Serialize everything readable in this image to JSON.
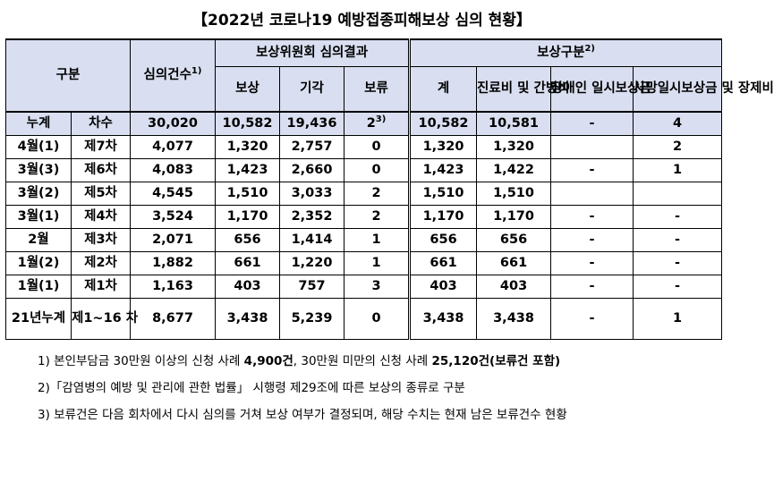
{
  "title": "【2022년 코로나19 예방접종피해보상 심의 현황】",
  "headers": {
    "gubun": "구분",
    "cases": "심의건수",
    "cases_sup": "1)",
    "committee": "보상위원회 심의결과",
    "compensation": "보상",
    "rejected": "기각",
    "pending": "보류",
    "comp_type": "보상구분",
    "comp_type_sup": "2)",
    "total": "계",
    "medical": "진료비 및 간병비",
    "disability": "장애인 일시보상금",
    "death": "사망일시보상금 및 장제비"
  },
  "total_row": {
    "label": "누계",
    "round": "차수",
    "cases": "30,020",
    "compensation": "10,582",
    "rejected": "19,436",
    "pending": "2",
    "pending_sup": "3)",
    "total": "10,582",
    "medical": "10,581",
    "disability": "-",
    "death": "4"
  },
  "rows": [
    {
      "month": "4월(1)",
      "round": "제7차",
      "cases": "4,077",
      "compensation": "1,320",
      "rejected": "2,757",
      "pending": "0",
      "total": "1,320",
      "medical": "1,320",
      "disability": "",
      "death": "2"
    },
    {
      "month": "3월(3)",
      "round": "제6차",
      "cases": "4,083",
      "compensation": "1,423",
      "rejected": "2,660",
      "pending": "0",
      "total": "1,423",
      "medical": "1,422",
      "disability": "-",
      "death": "1"
    },
    {
      "month": "3월(2)",
      "round": "제5차",
      "cases": "4,545",
      "compensation": "1,510",
      "rejected": "3,033",
      "pending": "2",
      "total": "1,510",
      "medical": "1,510",
      "disability": "",
      "death": ""
    },
    {
      "month": "3월(1)",
      "round": "제4차",
      "cases": "3,524",
      "compensation": "1,170",
      "rejected": "2,352",
      "pending": "2",
      "total": "1,170",
      "medical": "1,170",
      "disability": "-",
      "death": "-"
    },
    {
      "month": "2월",
      "round": "제3차",
      "cases": "2,071",
      "compensation": "656",
      "rejected": "1,414",
      "pending": "1",
      "total": "656",
      "medical": "656",
      "disability": "-",
      "death": "-"
    },
    {
      "month": "1월(2)",
      "round": "제2차",
      "cases": "1,882",
      "compensation": "661",
      "rejected": "1,220",
      "pending": "1",
      "total": "661",
      "medical": "661",
      "disability": "-",
      "death": "-"
    },
    {
      "month": "1월(1)",
      "round": "제1차",
      "cases": "1,163",
      "compensation": "403",
      "rejected": "757",
      "pending": "3",
      "total": "403",
      "medical": "403",
      "disability": "-",
      "death": "-"
    }
  ],
  "cum21_row": {
    "label": "21년누계",
    "round": "제1~16 차",
    "cases": "8,677",
    "compensation": "3,438",
    "rejected": "5,239",
    "pending": "0",
    "total": "3,438",
    "medical": "3,438",
    "disability": "-",
    "death": "1"
  },
  "notes": {
    "n1_a": "1) 본인부담금 30만원 이상의 신청 사례 ",
    "n1_b": "4,900건",
    "n1_c": ", 30만원 미만의 신청 사례 ",
    "n1_d": "25,120건(보류건 포함)",
    "n2": "2)「감염병의 예방 및 관리에 관한 법률」 시행령 제29조에 따른 보상의 종류로 구분",
    "n3": "3) 보류건은 다음 회차에서 다시 심의를 거쳐 보상 여부가 결정되며, 해당 수치는 현재 남은 보류건수 현황"
  }
}
